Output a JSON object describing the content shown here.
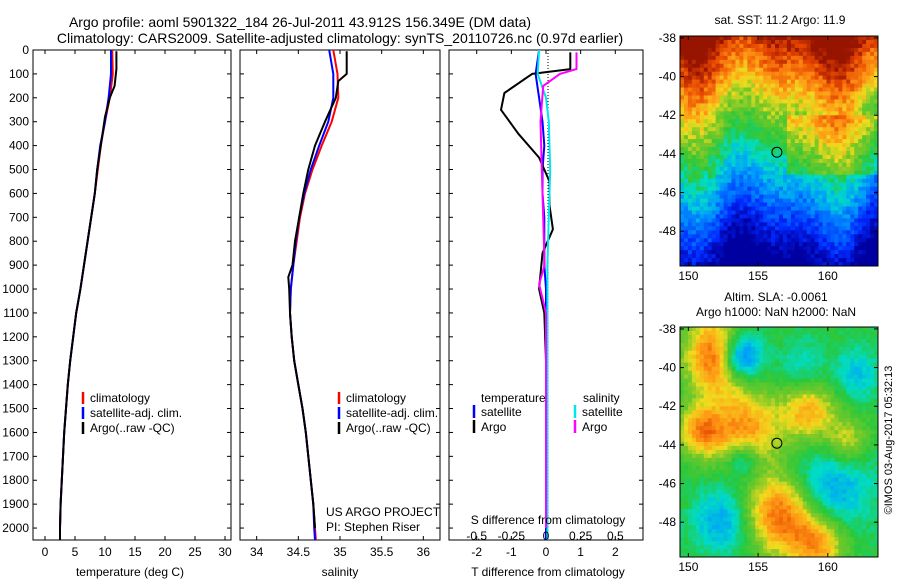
{
  "header": {
    "title_line1": "Argo profile: aoml 5901322_184 26-Jul-2011 43.912S 156.349E (DM data)",
    "title_line2": "Climatology: CARS2009. Satellite-adjusted climatology: synTS_20110726.nc (0.97d earlier)"
  },
  "colors": {
    "climatology": "#ff0000",
    "satellite": "#0000ff",
    "argo": "#000000",
    "salinity_satellite": "#00e5ee",
    "salinity_argo": "#ff00ff"
  },
  "chart_data": [
    {
      "type": "line",
      "xlabel": "temperature (deg C)",
      "xlim": [
        -2,
        31
      ],
      "xticks": [
        0,
        5,
        10,
        15,
        20,
        25,
        30
      ],
      "ylim": [
        0,
        2050
      ],
      "yticks": [
        0,
        100,
        200,
        300,
        400,
        500,
        600,
        700,
        800,
        900,
        1000,
        1100,
        1200,
        1300,
        1400,
        1500,
        1600,
        1700,
        1800,
        1900,
        2000
      ],
      "yreversed": true,
      "legend": [
        "climatology",
        "satellite-adj. clim.",
        "Argo(..raw -QC)"
      ],
      "series": [
        {
          "name": "climatology",
          "color": "#ff0000",
          "points": [
            [
              11.2,
              0
            ],
            [
              11.3,
              100
            ],
            [
              10.8,
              200
            ],
            [
              10.0,
              300
            ],
            [
              9.3,
              400
            ],
            [
              8.8,
              500
            ],
            [
              8.3,
              600
            ],
            [
              7.7,
              700
            ],
            [
              7.1,
              800
            ],
            [
              6.5,
              900
            ],
            [
              5.9,
              1000
            ],
            [
              5.2,
              1100
            ],
            [
              4.7,
              1200
            ],
            [
              4.2,
              1300
            ],
            [
              3.8,
              1400
            ],
            [
              3.5,
              1500
            ],
            [
              3.2,
              1600
            ],
            [
              3.0,
              1700
            ],
            [
              2.8,
              1800
            ],
            [
              2.6,
              1900
            ],
            [
              2.5,
              2000
            ],
            [
              2.5,
              2050
            ]
          ]
        },
        {
          "name": "satellite-adj. clim.",
          "color": "#0000ff",
          "points": [
            [
              11.0,
              0
            ],
            [
              11.0,
              100
            ],
            [
              10.6,
              200
            ],
            [
              10.0,
              300
            ],
            [
              9.2,
              400
            ],
            [
              8.7,
              500
            ],
            [
              8.3,
              600
            ],
            [
              7.7,
              700
            ],
            [
              7.1,
              800
            ],
            [
              6.5,
              900
            ],
            [
              5.9,
              1000
            ],
            [
              5.2,
              1100
            ],
            [
              4.7,
              1200
            ],
            [
              4.2,
              1300
            ],
            [
              3.8,
              1400
            ],
            [
              3.5,
              1500
            ],
            [
              3.2,
              1600
            ],
            [
              3.0,
              1700
            ],
            [
              2.8,
              1800
            ],
            [
              2.6,
              1900
            ],
            [
              2.5,
              2000
            ],
            [
              2.5,
              2050
            ]
          ]
        },
        {
          "name": "Argo(..raw -QC)",
          "color": "#000000",
          "points": [
            [
              11.9,
              5
            ],
            [
              11.9,
              80
            ],
            [
              11.6,
              150
            ],
            [
              10.8,
              200
            ],
            [
              10.0,
              280
            ],
            [
              9.3,
              400
            ],
            [
              8.7,
              500
            ],
            [
              8.3,
              600
            ],
            [
              7.7,
              700
            ],
            [
              7.1,
              800
            ],
            [
              6.5,
              900
            ],
            [
              5.9,
              1000
            ],
            [
              5.2,
              1100
            ],
            [
              4.7,
              1200
            ],
            [
              4.2,
              1300
            ],
            [
              3.8,
              1400
            ],
            [
              3.5,
              1500
            ],
            [
              3.2,
              1600
            ],
            [
              3.0,
              1700
            ],
            [
              2.8,
              1800
            ],
            [
              2.6,
              1900
            ],
            [
              2.5,
              2000
            ],
            [
              2.5,
              2050
            ]
          ]
        }
      ]
    },
    {
      "type": "line",
      "xlabel": "salinity",
      "xlim": [
        33.8,
        36.2
      ],
      "xticks": [
        34,
        34.5,
        35,
        35.5,
        36
      ],
      "ylim": [
        0,
        2050
      ],
      "yreversed": true,
      "legend": [
        "climatology",
        "satellite-adj. clim.",
        "Argo(..raw -QC)"
      ],
      "annotation_line1": "US ARGO PROJECT",
      "annotation_line2": "PI: Stephen Riser",
      "series": [
        {
          "name": "climatology",
          "color": "#ff0000",
          "points": [
            [
              34.92,
              0
            ],
            [
              34.97,
              100
            ],
            [
              34.98,
              200
            ],
            [
              34.9,
              300
            ],
            [
              34.78,
              400
            ],
            [
              34.67,
              500
            ],
            [
              34.58,
              600
            ],
            [
              34.52,
              700
            ],
            [
              34.48,
              800
            ],
            [
              34.44,
              900
            ],
            [
              34.41,
              1000
            ],
            [
              34.4,
              1100
            ],
            [
              34.42,
              1200
            ],
            [
              34.45,
              1300
            ],
            [
              34.5,
              1400
            ],
            [
              34.55,
              1500
            ],
            [
              34.59,
              1600
            ],
            [
              34.62,
              1700
            ],
            [
              34.65,
              1800
            ],
            [
              34.68,
              1900
            ],
            [
              34.7,
              2000
            ],
            [
              34.71,
              2050
            ]
          ]
        },
        {
          "name": "satellite-adj. clim.",
          "color": "#0000ff",
          "points": [
            [
              34.87,
              0
            ],
            [
              34.92,
              100
            ],
            [
              34.92,
              200
            ],
            [
              34.86,
              300
            ],
            [
              34.75,
              400
            ],
            [
              34.65,
              500
            ],
            [
              34.57,
              600
            ],
            [
              34.51,
              700
            ],
            [
              34.47,
              800
            ],
            [
              34.44,
              900
            ],
            [
              34.41,
              1000
            ],
            [
              34.4,
              1100
            ],
            [
              34.42,
              1200
            ],
            [
              34.45,
              1300
            ],
            [
              34.5,
              1400
            ],
            [
              34.55,
              1500
            ],
            [
              34.59,
              1600
            ],
            [
              34.62,
              1700
            ],
            [
              34.65,
              1800
            ],
            [
              34.68,
              1900
            ],
            [
              34.69,
              2000
            ],
            [
              34.7,
              2050
            ]
          ]
        },
        {
          "name": "Argo(..raw -QC)",
          "color": "#000000",
          "points": [
            [
              35.08,
              5
            ],
            [
              35.08,
              100
            ],
            [
              34.98,
              130
            ],
            [
              34.95,
              200
            ],
            [
              34.82,
              300
            ],
            [
              34.7,
              400
            ],
            [
              34.62,
              500
            ],
            [
              34.56,
              600
            ],
            [
              34.51,
              700
            ],
            [
              34.46,
              800
            ],
            [
              34.43,
              900
            ],
            [
              34.38,
              950
            ],
            [
              34.39,
              1000
            ],
            [
              34.4,
              1100
            ],
            [
              34.42,
              1200
            ],
            [
              34.45,
              1300
            ],
            [
              34.5,
              1400
            ],
            [
              34.55,
              1500
            ],
            [
              34.59,
              1600
            ],
            [
              34.62,
              1700
            ],
            [
              34.65,
              1800
            ],
            [
              34.68,
              1900
            ],
            [
              34.7,
              2000
            ]
          ]
        }
      ]
    },
    {
      "type": "line",
      "xlabel": "T difference from climatology",
      "xlabel_top": "S difference from climatology",
      "xlim": [
        -2.8,
        2.8
      ],
      "xticks": [
        -2,
        -1,
        0,
        1,
        2
      ],
      "xticks_top": [
        "-0.5",
        "-0.25",
        "0",
        "0.25",
        "0.5"
      ],
      "ylim": [
        0,
        2050
      ],
      "yreversed": true,
      "legend_temperature_heading": "temperature",
      "legend_salinity_heading": "salinity",
      "legend_satellite": "satellite",
      "legend_argo": "Argo",
      "series": [
        {
          "name": "T satellite",
          "color": "#0000ff",
          "points": [
            [
              -0.2,
              0
            ],
            [
              -0.3,
              100
            ],
            [
              -0.2,
              200
            ],
            [
              -0.1,
              300
            ],
            [
              -0.05,
              400
            ],
            [
              -0.1,
              500
            ],
            [
              -0.1,
              600
            ],
            [
              -0.05,
              700
            ],
            [
              -0.05,
              800
            ],
            [
              -0.05,
              900
            ],
            [
              0,
              1000
            ],
            [
              0,
              1200
            ],
            [
              0,
              1400
            ],
            [
              0,
              1600
            ],
            [
              0,
              1800
            ],
            [
              0,
              2050
            ]
          ]
        },
        {
          "name": "T Argo",
          "color": "#000000",
          "points": [
            [
              0.7,
              10
            ],
            [
              0.7,
              80
            ],
            [
              -0.4,
              100
            ],
            [
              -1.2,
              180
            ],
            [
              -1.3,
              250
            ],
            [
              -0.8,
              350
            ],
            [
              -0.2,
              450
            ],
            [
              0.1,
              550
            ],
            [
              0.1,
              650
            ],
            [
              0.2,
              750
            ],
            [
              -0.1,
              850
            ],
            [
              -0.2,
              1000
            ],
            [
              -0.05,
              1100
            ],
            [
              0,
              1300
            ],
            [
              0,
              1600
            ],
            [
              0,
              2000
            ]
          ]
        },
        {
          "name": "S satellite",
          "color": "#00e5ee",
          "points": [
            [
              -0.05,
              0
            ],
            [
              -0.06,
              100
            ],
            [
              0,
              200
            ],
            [
              0.02,
              300
            ],
            [
              0.03,
              500
            ],
            [
              0.02,
              700
            ],
            [
              0.01,
              900
            ],
            [
              0.01,
              1200
            ],
            [
              0.01,
              1600
            ],
            [
              0.01,
              2050
            ]
          ]
        },
        {
          "name": "S Argo",
          "color": "#ff00ff",
          "points": [
            [
              0.22,
              10
            ],
            [
              0.22,
              80
            ],
            [
              0.1,
              100
            ],
            [
              -0.02,
              150
            ],
            [
              -0.04,
              300
            ],
            [
              -0.03,
              500
            ],
            [
              -0.02,
              700
            ],
            [
              -0.01,
              900
            ],
            [
              -0.05,
              980
            ],
            [
              0,
              1100
            ],
            [
              0,
              1600
            ],
            [
              0,
              2000
            ]
          ]
        }
      ]
    },
    {
      "type": "heatmap",
      "title": "sat. SST: 11.2 Argo: 11.9",
      "xlim": [
        149.4,
        163.6
      ],
      "ylim": [
        -49.8,
        -37.9
      ],
      "xticks": [
        150,
        155,
        160
      ],
      "yticks": [
        -38,
        -40,
        -42,
        -44,
        -46,
        -48
      ],
      "marker": [
        156.35,
        -43.91
      ]
    },
    {
      "type": "heatmap",
      "title_line1": "Altim. SLA: -0.0061",
      "title_line2": "Argo h1000: NaN h2000: NaN",
      "xlim": [
        149.4,
        163.6
      ],
      "ylim": [
        -49.8,
        -37.9
      ],
      "xticks": [
        150,
        155,
        160
      ],
      "yticks": [
        -38,
        -40,
        -42,
        -44,
        -46,
        -48
      ],
      "marker": [
        156.35,
        -43.91
      ]
    }
  ],
  "footer": {
    "credit": "©IMOS 03-Aug-2017 05:32:13"
  }
}
